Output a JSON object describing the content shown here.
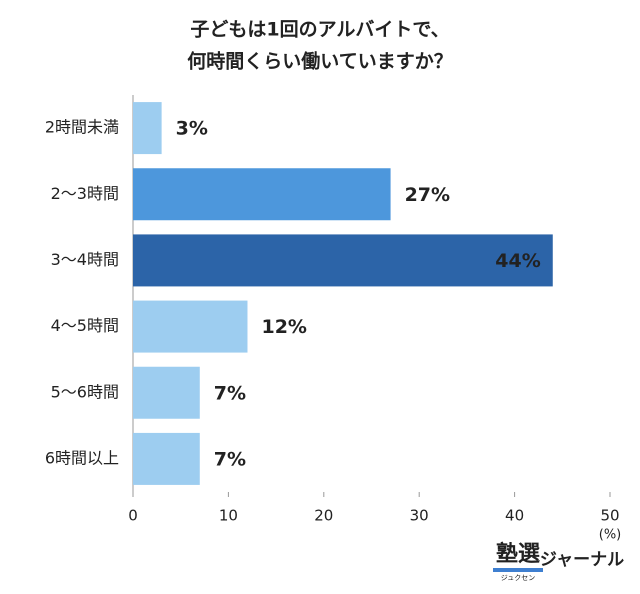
{
  "chart_data": {
    "type": "barh",
    "title": [
      "子どもは1回のアルバイトで、",
      "何時間くらい働いていますか？"
    ],
    "categories": [
      "2時間未満",
      "2〜3時間",
      "3〜4時間",
      "4〜5時間",
      "5〜6時間",
      "6時間以上"
    ],
    "values": [
      3,
      27,
      44,
      12,
      7,
      7
    ],
    "value_labels": [
      "3%",
      "27%",
      "44%",
      "12%",
      "7%",
      "7%"
    ],
    "colors": [
      "#9dcdf0",
      "#4d97dc",
      "#2c64a8",
      "#9dcdf0",
      "#9dcdf0",
      "#9dcdf0"
    ],
    "xlim": [
      0,
      50
    ],
    "xticks": [
      0,
      10,
      20,
      30,
      40,
      50
    ],
    "xlabel": "(%)",
    "grid": false
  },
  "logo": {
    "mark": "塾選",
    "reading": "ジュクセン",
    "name": "ジャーナル"
  }
}
